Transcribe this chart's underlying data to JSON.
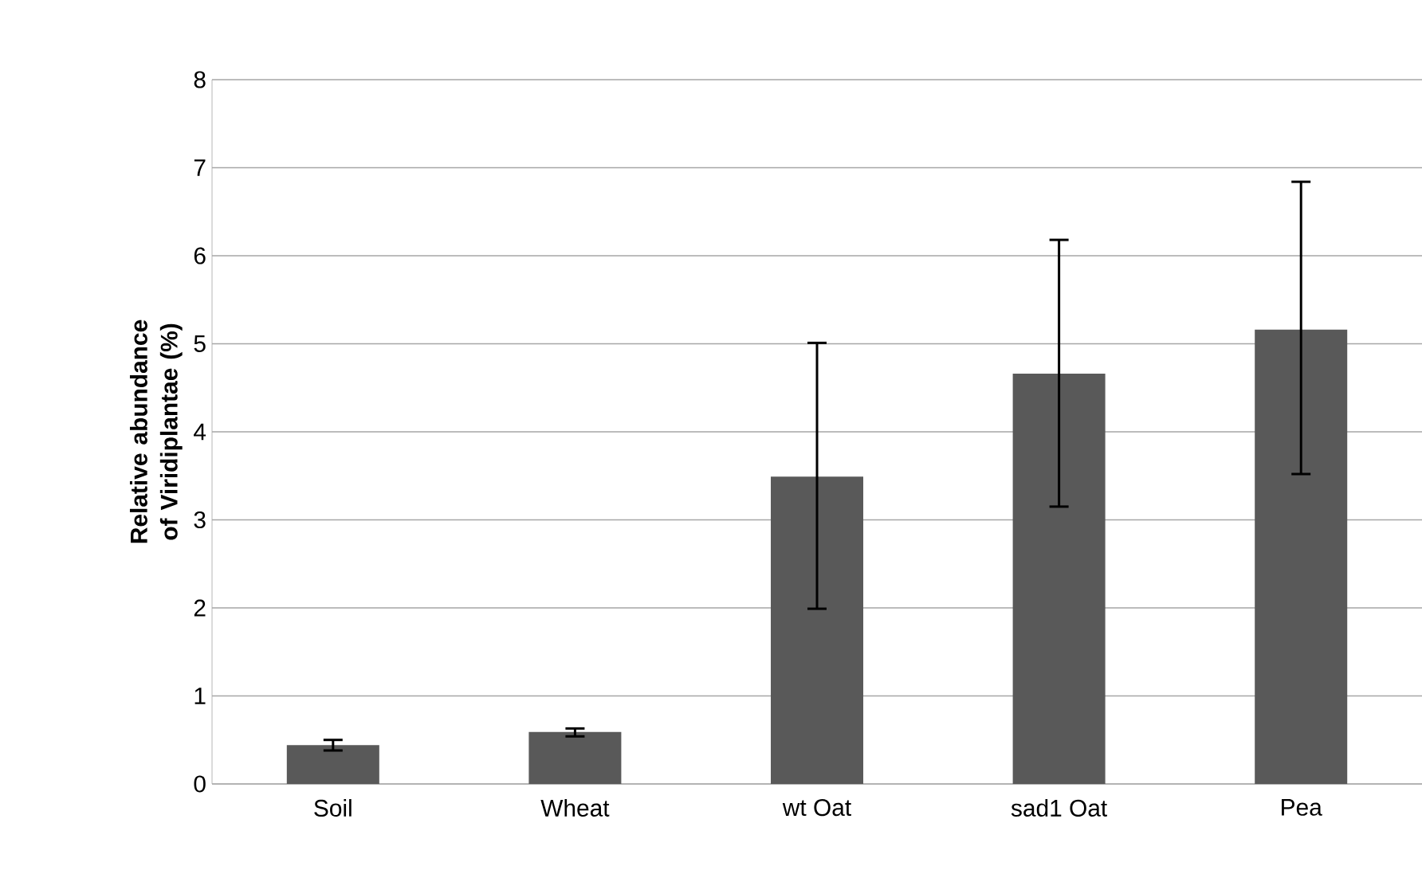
{
  "chart_data": {
    "type": "bar",
    "ylabel": "Relative abundance of Viridiplantae (%)",
    "categories": [
      "Soil",
      "Wheat",
      "wt Oat",
      "sad1 Oat",
      "Pea"
    ],
    "values": [
      0.44,
      0.59,
      3.49,
      4.66,
      5.16
    ],
    "errors": [
      [
        0.38,
        0.5
      ],
      [
        0.54,
        0.63
      ],
      [
        1.99,
        5.01
      ],
      [
        3.15,
        6.18
      ],
      [
        3.52,
        6.84
      ]
    ],
    "color": "#595959",
    "ylim": [
      0,
      8
    ],
    "yticks": [
      0,
      1,
      2,
      3,
      4,
      5,
      6,
      7,
      8
    ],
    "grid": "y"
  }
}
